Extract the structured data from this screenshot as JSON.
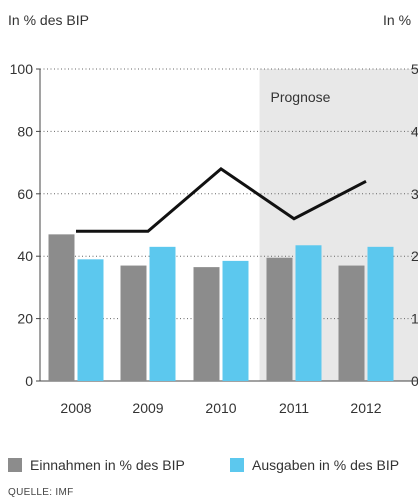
{
  "chart_data": {
    "type": "bar",
    "categories": [
      "2008",
      "2009",
      "2010",
      "2011",
      "2012"
    ],
    "series": [
      {
        "name": "Einnahmen in % des BIP",
        "kind": "bar",
        "color": "#8c8c8c",
        "values": [
          47,
          37,
          36.5,
          39.5,
          37
        ]
      },
      {
        "name": "Ausgaben in % des BIP",
        "kind": "bar",
        "color": "#5cc8ee",
        "values": [
          39,
          43,
          38.5,
          43.5,
          43
        ]
      },
      {
        "name": "",
        "kind": "line",
        "color": "#111111",
        "axis": "right",
        "values": [
          24,
          24,
          34,
          26,
          32
        ]
      }
    ],
    "ylabel": "In % des BIP",
    "y2label": "In %",
    "ylim": [
      0,
      100
    ],
    "yticks": [
      0,
      20,
      40,
      60,
      80,
      100
    ],
    "y2ticks_visible": [
      "0",
      "1",
      "2",
      "3",
      "4",
      "5"
    ],
    "forecast_label": "Prognose",
    "forecast_from": "2011",
    "grid": "dotted horizontal"
  },
  "source": "QUELLE: IMF"
}
